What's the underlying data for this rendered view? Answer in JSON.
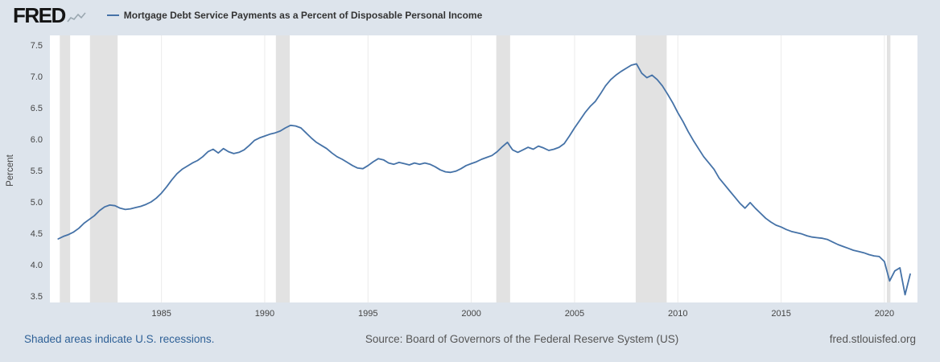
{
  "header": {
    "logo_text": "FRED",
    "legend_label": "Mortgage Debt Service Payments as a Percent of Disposable Personal Income"
  },
  "footer": {
    "recessions_note": "Shaded areas indicate U.S. recessions.",
    "source": "Source: Board of Governors of the Federal Reserve System (US)",
    "site": "fred.stlouisfed.org"
  },
  "icons": {
    "logo_sparkline": "fred-sparkline-icon",
    "legend_swatch": "legend-line-swatch"
  },
  "colors": {
    "page_bg": "#dde4ec",
    "plot_bg": "#ffffff",
    "line": "#4572a7",
    "recession_band": "#e2e2e2",
    "gridline": "#ececec",
    "tick_text": "#444444",
    "link": "#2f6197"
  },
  "chart_data": {
    "type": "line",
    "title": "Mortgage Debt Service Payments as a Percent of Disposable Personal Income",
    "ylabel": "Percent",
    "ylim": [
      3.5,
      7.5
    ],
    "yticks": [
      3.5,
      4.0,
      4.5,
      5.0,
      5.5,
      6.0,
      6.5,
      7.0,
      7.5
    ],
    "xlim": [
      1979.6,
      2021.6
    ],
    "xticks": [
      1985,
      1990,
      1995,
      2000,
      2005,
      2010,
      2015,
      2020
    ],
    "grid": "vertical-only",
    "legend_position": "top-left",
    "line_color": "#4572a7",
    "recession_bands": [
      [
        1980.08,
        1980.58
      ],
      [
        1981.54,
        1982.88
      ],
      [
        1990.54,
        1991.21
      ],
      [
        2001.21,
        2001.88
      ],
      [
        2007.96,
        2009.46
      ],
      [
        2020.12,
        2020.29
      ]
    ],
    "x_start": 1980.0,
    "x_step": 0.25,
    "values": [
      4.41,
      4.45,
      4.48,
      4.52,
      4.58,
      4.66,
      4.72,
      4.78,
      4.86,
      4.92,
      4.95,
      4.94,
      4.9,
      4.88,
      4.89,
      4.91,
      4.93,
      4.96,
      5.0,
      5.06,
      5.14,
      5.24,
      5.35,
      5.45,
      5.52,
      5.57,
      5.62,
      5.66,
      5.72,
      5.8,
      5.84,
      5.78,
      5.85,
      5.8,
      5.77,
      5.79,
      5.83,
      5.9,
      5.98,
      6.02,
      6.05,
      6.08,
      6.1,
      6.13,
      6.18,
      6.22,
      6.21,
      6.18,
      6.1,
      6.02,
      5.95,
      5.9,
      5.85,
      5.78,
      5.72,
      5.68,
      5.63,
      5.58,
      5.54,
      5.53,
      5.58,
      5.64,
      5.69,
      5.67,
      5.62,
      5.6,
      5.63,
      5.61,
      5.59,
      5.62,
      5.6,
      5.62,
      5.6,
      5.56,
      5.51,
      5.48,
      5.47,
      5.49,
      5.53,
      5.58,
      5.61,
      5.64,
      5.68,
      5.71,
      5.74,
      5.8,
      5.88,
      5.95,
      5.83,
      5.79,
      5.83,
      5.87,
      5.84,
      5.89,
      5.86,
      5.82,
      5.84,
      5.87,
      5.93,
      6.05,
      6.18,
      6.3,
      6.42,
      6.52,
      6.6,
      6.72,
      6.85,
      6.95,
      7.02,
      7.08,
      7.13,
      7.18,
      7.2,
      7.05,
      6.98,
      7.02,
      6.95,
      6.85,
      6.72,
      6.58,
      6.42,
      6.28,
      6.12,
      5.98,
      5.85,
      5.72,
      5.62,
      5.52,
      5.38,
      5.28,
      5.18,
      5.08,
      4.98,
      4.9,
      4.99,
      4.9,
      4.82,
      4.74,
      4.68,
      4.63,
      4.6,
      4.56,
      4.53,
      4.51,
      4.49,
      4.46,
      4.44,
      4.43,
      4.42,
      4.4,
      4.36,
      4.32,
      4.29,
      4.26,
      4.23,
      4.21,
      4.19,
      4.16,
      4.14,
      4.13,
      4.05,
      3.74,
      3.9,
      3.95,
      3.52,
      3.85
    ]
  }
}
